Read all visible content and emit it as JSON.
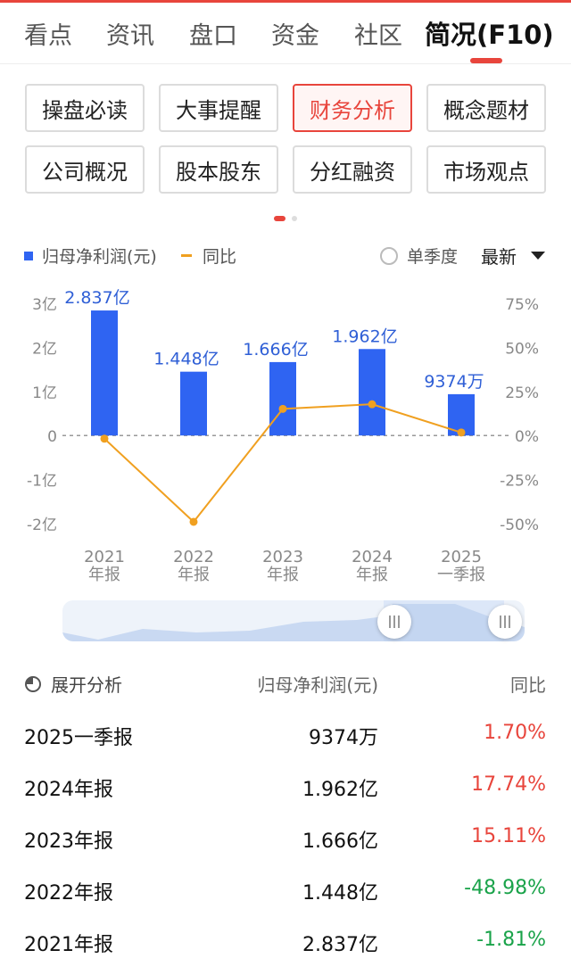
{
  "tabs": [
    {
      "label": "看点",
      "active": false
    },
    {
      "label": "资讯",
      "active": false
    },
    {
      "label": "盘口",
      "active": false
    },
    {
      "label": "资金",
      "active": false
    },
    {
      "label": "社区",
      "active": false
    },
    {
      "label": "简况(F10)",
      "active": true
    }
  ],
  "sub_buttons": [
    {
      "label": "操盘必读",
      "active": false
    },
    {
      "label": "大事提醒",
      "active": false
    },
    {
      "label": "财务分析",
      "active": true
    },
    {
      "label": "概念题材",
      "active": false
    },
    {
      "label": "公司概况",
      "active": false
    },
    {
      "label": "股本股东",
      "active": false
    },
    {
      "label": "分红融资",
      "active": false
    },
    {
      "label": "市场观点",
      "active": false
    }
  ],
  "legend": {
    "bar_label": "归母净利润(元)",
    "line_label": "同比",
    "single_quarter_label": "单季度",
    "period_select": "最新"
  },
  "colors": {
    "accent": "#e8453c",
    "bar": "#2f64f2",
    "line": "#f0a020",
    "positive": "#e8453c",
    "negative": "#1aa34a"
  },
  "chart_data": {
    "type": "bar",
    "categories": [
      [
        "2021",
        "年报"
      ],
      [
        "2022",
        "年报"
      ],
      [
        "2023",
        "年报"
      ],
      [
        "2024",
        "年报"
      ],
      [
        "2025",
        "一季报"
      ]
    ],
    "series": [
      {
        "name": "归母净利润(元)",
        "type": "bar",
        "values": [
          2.837,
          1.448,
          1.666,
          1.962,
          0.9374
        ],
        "labels": [
          "2.837亿",
          "1.448亿",
          "1.666亿",
          "1.962亿",
          "9374万"
        ]
      },
      {
        "name": "同比",
        "type": "line",
        "values": [
          -1.81,
          -48.98,
          15.11,
          17.74,
          1.7
        ]
      }
    ],
    "left_axis": {
      "ticks": [
        "3亿",
        "2亿",
        "1亿",
        "0",
        "-1亿",
        "-2亿"
      ],
      "range": [
        -2,
        3
      ]
    },
    "right_axis": {
      "ticks": [
        "75%",
        "50%",
        "25%",
        "0%",
        "-25%",
        "-50%"
      ],
      "range": [
        -50,
        75
      ]
    },
    "zero_line": "dashed"
  },
  "table": {
    "expand_label": "展开分析",
    "col_value": "归母净利润(元)",
    "col_yoy": "同比",
    "rows": [
      {
        "period": "2025一季报",
        "value": "9374万",
        "yoy": "1.70%",
        "sign": "positive"
      },
      {
        "period": "2024年报",
        "value": "1.962亿",
        "yoy": "17.74%",
        "sign": "positive"
      },
      {
        "period": "2023年报",
        "value": "1.666亿",
        "yoy": "15.11%",
        "sign": "positive"
      },
      {
        "period": "2022年报",
        "value": "1.448亿",
        "yoy": "-48.98%",
        "sign": "negative"
      },
      {
        "period": "2021年报",
        "value": "2.837亿",
        "yoy": "-1.81%",
        "sign": "negative"
      }
    ]
  }
}
